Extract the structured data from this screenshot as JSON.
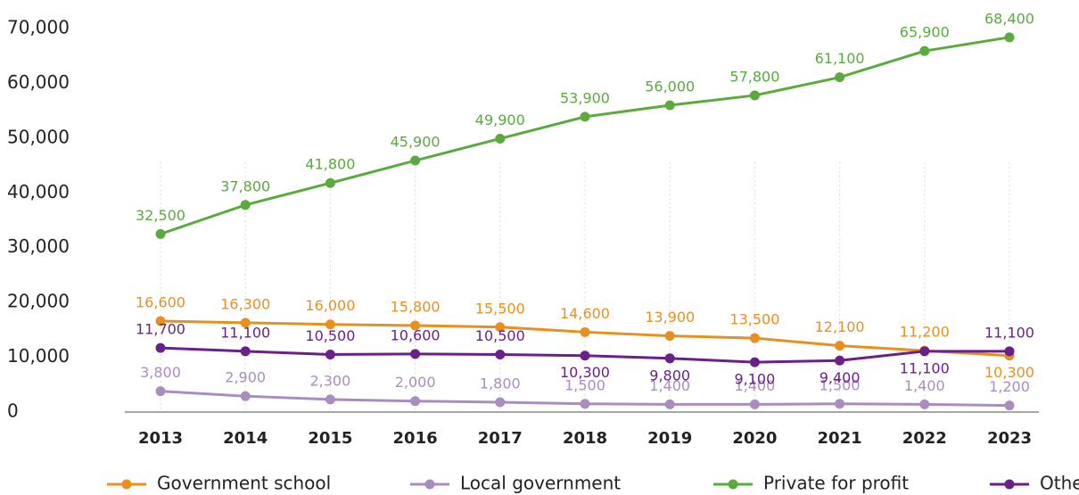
{
  "chart_data": {
    "type": "line",
    "categories": [
      "2013",
      "2014",
      "2015",
      "2016",
      "2017",
      "2018",
      "2019",
      "2020",
      "2021",
      "2022",
      "2023"
    ],
    "series": [
      {
        "name": "Government school",
        "color": "#e8901f",
        "values": [
          16600,
          16300,
          16000,
          15800,
          15500,
          14600,
          13900,
          13500,
          12100,
          11200,
          10300
        ],
        "value_labels": [
          "16,600",
          "16,300",
          "16,000",
          "15,800",
          "15,500",
          "14,600",
          "13,900",
          "13,500",
          "12,100",
          "11,200",
          "10,300"
        ]
      },
      {
        "name": "Local government",
        "color": "#a98dc0",
        "values": [
          3800,
          2900,
          2300,
          2000,
          1800,
          1500,
          1400,
          1400,
          1500,
          1400,
          1200
        ],
        "value_labels": [
          "3,800",
          "2,900",
          "2,300",
          "2,000",
          "1,800",
          "1,500",
          "1,400",
          "1,400",
          "1,500",
          "1,400",
          "1,200"
        ]
      },
      {
        "name": "Private for profit",
        "color": "#5aaa3e",
        "values": [
          32500,
          37800,
          41800,
          45900,
          49900,
          53900,
          56000,
          57800,
          61100,
          65900,
          68400
        ],
        "value_labels": [
          "32,500",
          "37,800",
          "41,800",
          "45,900",
          "49,900",
          "53,900",
          "56,000",
          "57,800",
          "61,100",
          "65,900",
          "68,400"
        ]
      },
      {
        "name": "Other",
        "color": "#6b1f8a",
        "values": [
          11700,
          11100,
          10500,
          10600,
          10500,
          10300,
          9800,
          9100,
          9400,
          11100,
          11100
        ],
        "value_labels": [
          "11,700",
          "11,100",
          "10,500",
          "10,600",
          "10,500",
          "10,300",
          "9,800",
          "9,100",
          "9,400",
          "11,100",
          "11,100"
        ]
      }
    ],
    "ylim": [
      0,
      70000
    ],
    "yticks": [
      0,
      {
        "value": 10000,
        "label": "10,000"
      },
      {
        "value": 20000,
        "label": "20,000"
      },
      {
        "value": 30000,
        "label": "30,000"
      },
      {
        "value": 40000,
        "label": "40,000"
      },
      {
        "value": 50000,
        "label": "50,000"
      },
      {
        "value": 60000,
        "label": "60,000"
      },
      {
        "value": 70000,
        "label": "70,000"
      }
    ],
    "grid": true,
    "legend": "bottom"
  }
}
